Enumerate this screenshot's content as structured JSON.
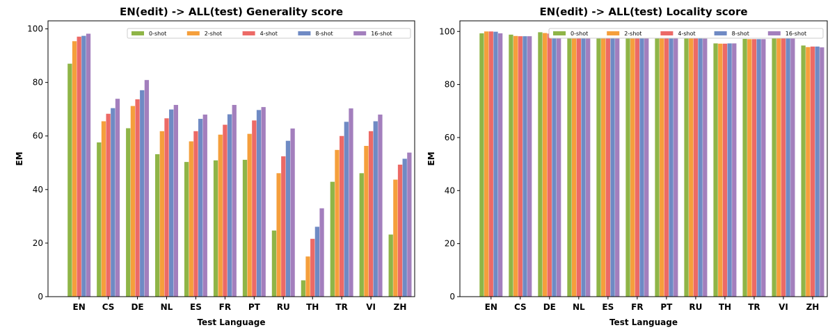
{
  "chart_data": [
    {
      "type": "bar",
      "title": "EN(edit) -> ALL(test) Generality score",
      "xlabel": "Test Language",
      "ylabel": "EM",
      "ylim": [
        0,
        103
      ],
      "yticks": [
        0,
        20,
        40,
        60,
        80,
        100
      ],
      "legend": "top-right",
      "categories": [
        "EN",
        "CS",
        "DE",
        "NL",
        "ES",
        "FR",
        "PT",
        "RU",
        "TH",
        "TR",
        "VI",
        "ZH"
      ],
      "series": [
        {
          "name": "0-shot",
          "color": "#8fb547",
          "values": [
            87.0,
            57.6,
            62.9,
            53.2,
            50.3,
            50.9,
            51.1,
            24.7,
            6.1,
            42.9,
            46.1,
            23.2
          ]
        },
        {
          "name": "2-shot",
          "color": "#f59f3c",
          "values": [
            95.4,
            65.5,
            71.2,
            61.8,
            58.0,
            60.5,
            60.8,
            46.1,
            15.0,
            54.8,
            56.3,
            43.7
          ]
        },
        {
          "name": "4-shot",
          "color": "#ec6a66",
          "values": [
            97.1,
            68.3,
            73.7,
            66.6,
            61.8,
            64.2,
            65.8,
            52.4,
            21.6,
            60.0,
            61.8,
            49.3
          ]
        },
        {
          "name": "8-shot",
          "color": "#6f8ac4",
          "values": [
            97.4,
            70.4,
            77.1,
            69.9,
            66.4,
            68.1,
            69.7,
            58.2,
            26.1,
            65.3,
            65.5,
            51.5
          ]
        },
        {
          "name": "16-shot",
          "color": "#a37fbd",
          "values": [
            98.2,
            73.9,
            80.9,
            71.6,
            68.0,
            71.6,
            70.8,
            62.8,
            33.0,
            70.3,
            68.0,
            53.8
          ]
        }
      ]
    },
    {
      "type": "bar",
      "title": "EN(edit) -> ALL(test) Locality score",
      "xlabel": "Test Language",
      "ylabel": "EM",
      "ylim": [
        0,
        104
      ],
      "yticks": [
        0,
        20,
        40,
        60,
        80,
        100
      ],
      "legend": "top-right",
      "categories": [
        "EN",
        "CS",
        "DE",
        "NL",
        "ES",
        "FR",
        "PT",
        "RU",
        "TH",
        "TR",
        "VI",
        "ZH"
      ],
      "series": [
        {
          "name": "0-shot",
          "color": "#8fb547",
          "values": [
            99.3,
            98.8,
            99.7,
            98.8,
            98.5,
            98.8,
            98.9,
            97.8,
            95.5,
            97.2,
            97.9,
            94.7
          ]
        },
        {
          "name": "2-shot",
          "color": "#f59f3c",
          "values": [
            100.0,
            98.3,
            99.4,
            98.4,
            98.3,
            98.4,
            98.4,
            97.5,
            95.4,
            97.1,
            97.8,
            94.1
          ]
        },
        {
          "name": "4-shot",
          "color": "#ec6a66",
          "values": [
            100.0,
            98.2,
            99.2,
            98.2,
            98.0,
            98.2,
            98.4,
            97.4,
            95.4,
            97.1,
            97.8,
            94.3
          ]
        },
        {
          "name": "8-shot",
          "color": "#6f8ac4",
          "values": [
            99.9,
            98.2,
            99.0,
            98.2,
            98.0,
            98.2,
            98.3,
            97.4,
            95.5,
            97.1,
            97.8,
            94.3
          ]
        },
        {
          "name": "16-shot",
          "color": "#a37fbd",
          "values": [
            99.3,
            98.2,
            98.9,
            98.0,
            98.0,
            98.0,
            98.2,
            97.3,
            95.5,
            97.1,
            97.7,
            94.0
          ]
        }
      ]
    }
  ]
}
